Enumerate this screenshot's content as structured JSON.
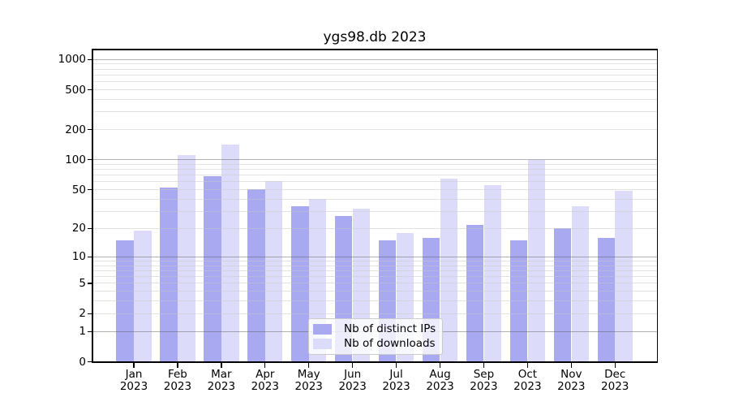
{
  "chart_data": {
    "type": "bar",
    "title": "ygs98.db 2023",
    "categories": [
      "Jan",
      "Feb",
      "Mar",
      "Apr",
      "May",
      "Jun",
      "Jul",
      "Aug",
      "Sep",
      "Oct",
      "Nov",
      "Dec"
    ],
    "xtick_year": "2023",
    "series": [
      {
        "name": "Nb of distinct IPs",
        "color": "#a9a9f2",
        "values": [
          15,
          53,
          68,
          51,
          34,
          27,
          15,
          16,
          22,
          15,
          20,
          16
        ]
      },
      {
        "name": "Nb of downloads",
        "color": "#dcdcfa",
        "values": [
          19,
          112,
          142,
          61,
          40,
          32,
          18,
          65,
          56,
          100,
          34,
          49
        ]
      }
    ],
    "yscale": "log1p",
    "ylim": [
      0,
      1255
    ],
    "yticks": [
      0,
      1,
      2,
      5,
      10,
      20,
      50,
      100,
      200,
      500,
      1000
    ],
    "major_gridlines": [
      1,
      10,
      100,
      1000
    ],
    "minor_gridlines": [
      2,
      3,
      4,
      5,
      6,
      7,
      8,
      9,
      20,
      30,
      40,
      50,
      60,
      70,
      80,
      90,
      200,
      300,
      400,
      500,
      600,
      700,
      800,
      900
    ],
    "grid": true,
    "legend_position": "lower center",
    "xlabel": "",
    "ylabel": ""
  },
  "colors": {
    "background": "#ffffff",
    "spine": "#000000",
    "text": "#000000",
    "major_grid": "#b0b0b0",
    "minor_grid": "#e6e6e6",
    "legend_border": "#cbcbcb"
  }
}
